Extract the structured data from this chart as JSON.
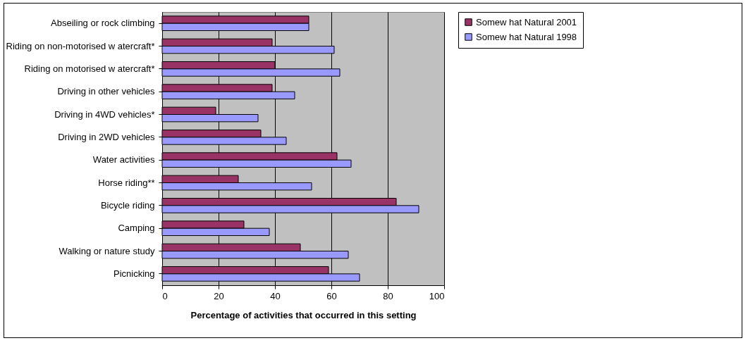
{
  "chart_data": {
    "type": "bar",
    "orientation": "horizontal",
    "xlabel": "Percentage of activities that occurred in this setting",
    "categories": [
      "Abseiling or rock climbing",
      "Riding on non-motorised w atercraft*",
      "Riding on motorised w atercraft*",
      "Driving in other vehicles",
      "Driving in 4WD vehicles*",
      "Driving in 2WD vehicles",
      "Water activities",
      "Horse riding**",
      "Bicycle riding",
      "Camping",
      "Walking or nature study",
      "Picnicking"
    ],
    "series": [
      {
        "name": "Somew hat Natural 2001",
        "color": "#993366",
        "values": [
          52,
          39,
          40,
          39,
          19,
          35,
          62,
          27,
          83,
          29,
          49,
          59
        ]
      },
      {
        "name": "Somew hat Natural 1998",
        "color": "#9999ff",
        "values": [
          52,
          61,
          63,
          47,
          34,
          44,
          67,
          53,
          91,
          38,
          66,
          70
        ]
      }
    ],
    "xlim": [
      0,
      100
    ],
    "xticks": [
      0,
      20,
      40,
      60,
      80,
      100
    ],
    "grid": "x",
    "legend": "right"
  }
}
